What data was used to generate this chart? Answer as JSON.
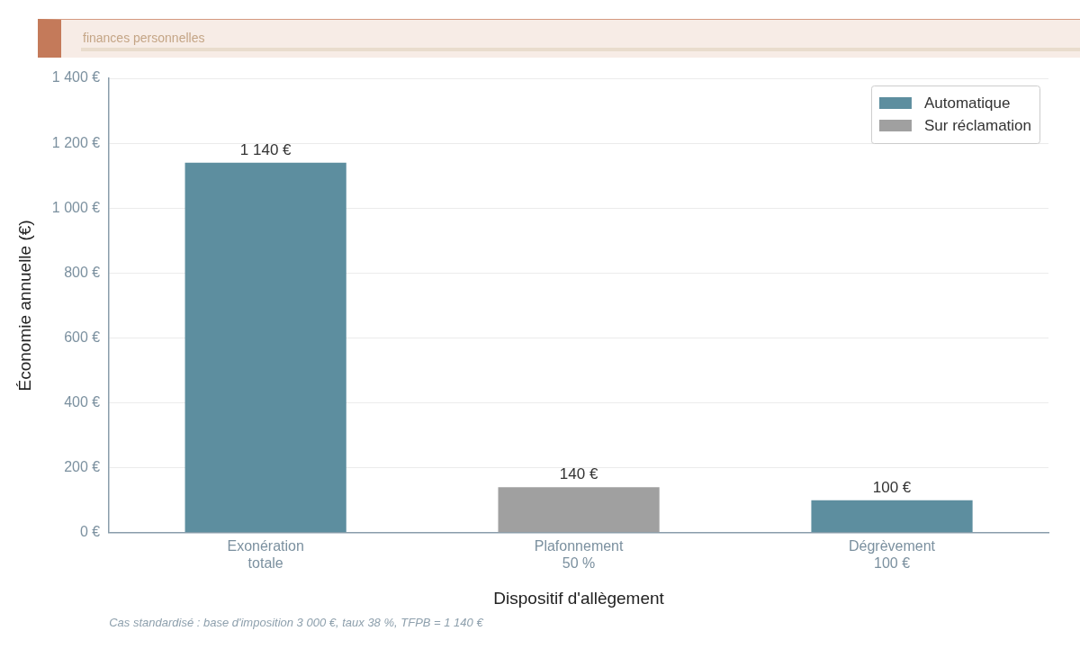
{
  "chart_data": {
    "type": "bar",
    "subtitle": "finances personnelles",
    "xlabel": "Dispositif d'allègement",
    "ylabel": "Économie annuelle (€)",
    "annotations": [
      "Cas standardisé : base d'imposition 3 000 €, taux 38 %, TFPB = 1 140 €"
    ],
    "categories": [
      "Exonération\ntotale",
      "Plafonnement\n50 %",
      "Dégrèvement\n100 €"
    ],
    "series": [
      {
        "name": "Automatique",
        "color": "#5d8e9f",
        "values": [
          1140,
          null,
          100
        ],
        "value_labels": [
          "1 140 €",
          null,
          "100 €"
        ]
      },
      {
        "name": "Sur réclamation",
        "color": "#a0a0a0",
        "values": [
          null,
          140,
          null
        ],
        "value_labels": [
          null,
          "140 €",
          null
        ]
      }
    ],
    "ylim": [
      0,
      1400
    ],
    "yticks": [
      {
        "value": 0,
        "label": "0 €"
      },
      {
        "value": 200,
        "label": "200 €"
      },
      {
        "value": 400,
        "label": "400 €"
      },
      {
        "value": 600,
        "label": "600 €"
      },
      {
        "value": 800,
        "label": "800 €"
      },
      {
        "value": 1000,
        "label": "1 000 €"
      },
      {
        "value": 1200,
        "label": "1 200 €"
      },
      {
        "value": 1400,
        "label": "1 400 €"
      }
    ],
    "grid": "y",
    "legend": "top right"
  }
}
